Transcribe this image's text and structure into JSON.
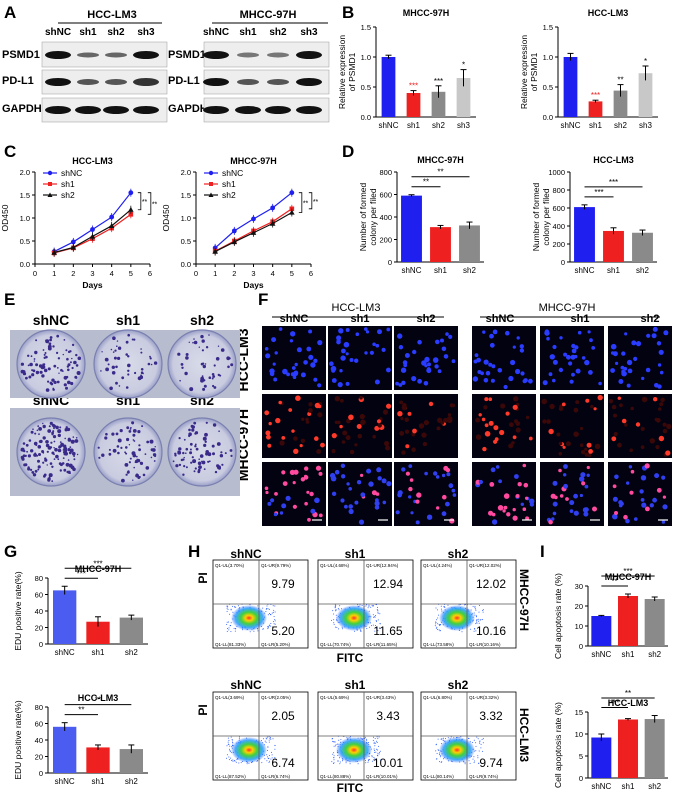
{
  "panels": {
    "A": "A",
    "B": "B",
    "C": "C",
    "D": "D",
    "E": "E",
    "F": "F",
    "G": "G",
    "H": "H",
    "I": "I"
  },
  "cell_lines": {
    "lm3": "HCC-LM3",
    "m97": "MHCC-97H"
  },
  "groups3": [
    "shNC",
    "sh1",
    "sh2"
  ],
  "groups4": [
    "shNC",
    "sh1",
    "sh2",
    "sh3"
  ],
  "proteins": [
    "PSMD1",
    "PD-L1",
    "GAPDH"
  ],
  "colors": {
    "shNC": "#1f1ff0",
    "sh1": "#ee2020",
    "sh2": "#8a8a8a",
    "sh3": "#c8c8c8",
    "edu_blue": "#4b5cf0"
  },
  "flow": {
    "x_label": "FITC",
    "y_label": "PI",
    "m97": [
      {
        "q2": "9.79",
        "q4": "5.20",
        "ul": "Q1-UL(3.70%)",
        "ur": "Q1-UR(9.79%)",
        "ll": "Q1-LL(81.33%)",
        "lr": "Q1-LR(5.20%)"
      },
      {
        "q2": "12.94",
        "q4": "11.65",
        "ul": "Q1-UL(4.68%)",
        "ur": "Q1-UR(12.94%)",
        "ll": "Q1-LL(70.74%)",
        "lr": "Q1-LR(11.65%)"
      },
      {
        "q2": "12.02",
        "q4": "10.16",
        "ul": "Q1-UL(4.24%)",
        "ur": "Q1-UR(12.02%)",
        "ll": "Q1-LL(73.58%)",
        "lr": "Q1-LR(10.16%)"
      }
    ],
    "lm3": [
      {
        "q2": "2.05",
        "q4": "6.74",
        "ul": "Q1-UL(3.69%)",
        "ur": "Q1-UR(2.05%)",
        "ll": "Q1-LL(87.52%)",
        "lr": "Q1-LR(6.74%)"
      },
      {
        "q2": "3.43",
        "q4": "10.01",
        "ul": "Q1-UL(5.69%)",
        "ur": "Q1-UR(3.43%)",
        "ll": "Q1-LL(80.88%)",
        "lr": "Q1-LR(10.01%)"
      },
      {
        "q2": "3.32",
        "q4": "9.74",
        "ul": "Q1-UL(6.80%)",
        "ur": "Q1-UR(3.32%)",
        "ll": "Q1-LL(80.14%)",
        "lr": "Q1-LR(9.74%)"
      }
    ]
  },
  "chart_data": [
    {
      "id": "B1",
      "type": "bar",
      "title": "MHCC-97H",
      "ylabel": "Relative expression of PSMD1",
      "categories": [
        "shNC",
        "sh1",
        "sh2",
        "sh3"
      ],
      "values": [
        1.0,
        0.4,
        0.42,
        0.65
      ],
      "errors": [
        0.03,
        0.04,
        0.1,
        0.14
      ],
      "sig": [
        "",
        "***",
        "***",
        "*"
      ],
      "ylim": [
        0,
        1.5
      ],
      "ticks": [
        "0.0",
        "0.5",
        "1.0",
        "1.5"
      ]
    },
    {
      "id": "B2",
      "type": "bar",
      "title": "HCC-LM3",
      "ylabel": "Relative expression of PSMD1",
      "categories": [
        "shNC",
        "sh1",
        "sh2",
        "sh3"
      ],
      "values": [
        1.0,
        0.26,
        0.44,
        0.73
      ],
      "errors": [
        0.06,
        0.02,
        0.1,
        0.12
      ],
      "sig": [
        "",
        "***",
        "**",
        "*"
      ],
      "ylim": [
        0,
        1.5
      ],
      "ticks": [
        "0.0",
        "0.5",
        "1.0",
        "1.5"
      ]
    },
    {
      "id": "C1",
      "type": "line",
      "title": "HCC-LM3",
      "xlabel": "Days",
      "ylabel": "OD450",
      "x": [
        1,
        2,
        3,
        4,
        5
      ],
      "xticks": [
        "0",
        "1",
        "2",
        "3",
        "4",
        "5",
        "6"
      ],
      "yticks": [
        "0.0",
        "0.5",
        "1.0",
        "1.5",
        "2.0"
      ],
      "ylim": [
        0,
        2
      ],
      "series": [
        {
          "name": "shNC",
          "values": [
            0.27,
            0.48,
            0.75,
            1.02,
            1.55
          ]
        },
        {
          "name": "sh1",
          "values": [
            0.24,
            0.35,
            0.55,
            0.78,
            1.08
          ]
        },
        {
          "name": "sh2",
          "values": [
            0.25,
            0.36,
            0.6,
            0.83,
            1.18
          ]
        }
      ],
      "sig": [
        "**",
        "**"
      ]
    },
    {
      "id": "C2",
      "type": "line",
      "title": "MHCC-97H",
      "xlabel": "Days",
      "ylabel": "OD450",
      "x": [
        1,
        2,
        3,
        4,
        5
      ],
      "xticks": [
        "0",
        "1",
        "2",
        "3",
        "4",
        "5",
        "6"
      ],
      "yticks": [
        "0.0",
        "0.5",
        "1.0",
        "1.5",
        "2.0"
      ],
      "ylim": [
        0,
        2
      ],
      "series": [
        {
          "name": "shNC",
          "values": [
            0.35,
            0.72,
            0.98,
            1.22,
            1.55
          ]
        },
        {
          "name": "sh1",
          "values": [
            0.28,
            0.5,
            0.72,
            0.92,
            1.2
          ]
        },
        {
          "name": "sh2",
          "values": [
            0.27,
            0.48,
            0.68,
            0.88,
            1.12
          ]
        }
      ],
      "sig": [
        "**",
        "**"
      ]
    },
    {
      "id": "D1",
      "type": "bar",
      "title": "MHCC-97H",
      "ylabel": "Number of formed colony per filed",
      "categories": [
        "shNC",
        "sh1",
        "sh2"
      ],
      "values": [
        590,
        310,
        325
      ],
      "errors": [
        8,
        15,
        30
      ],
      "sig_lines": [
        "**",
        "**"
      ],
      "ylim": [
        0,
        800
      ],
      "ticks": [
        "0",
        "200",
        "400",
        "600",
        "800"
      ]
    },
    {
      "id": "D2",
      "type": "bar",
      "title": "HCC-LM3",
      "ylabel": "Number of formed colony per filed",
      "categories": [
        "shNC",
        "sh1",
        "sh2"
      ],
      "values": [
        610,
        345,
        325
      ],
      "errors": [
        25,
        35,
        30
      ],
      "sig_lines": [
        "***",
        "***"
      ],
      "ylim": [
        0,
        1000
      ],
      "ticks": [
        "0",
        "200",
        "400",
        "600",
        "800",
        "1000"
      ]
    },
    {
      "id": "G1",
      "type": "bar",
      "title": "MHCC-97H",
      "ylabel": "EDU positive rate(%)",
      "categories": [
        "shNC",
        "sh1",
        "sh2"
      ],
      "values": [
        65,
        27,
        32
      ],
      "errors": [
        5,
        6,
        3
      ],
      "sig_lines": [
        "***",
        "***"
      ],
      "ylim": [
        0,
        80
      ],
      "ticks": [
        "0",
        "20",
        "40",
        "60",
        "80"
      ]
    },
    {
      "id": "G2",
      "type": "bar",
      "title": "HCC-LM3",
      "ylabel": "EDU positive rate(%)",
      "categories": [
        "shNC",
        "sh1",
        "sh2"
      ],
      "values": [
        56,
        31,
        29
      ],
      "errors": [
        5,
        3,
        5
      ],
      "sig_lines": [
        "**",
        "**"
      ],
      "ylim": [
        0,
        80
      ],
      "ticks": [
        "0",
        "20",
        "40",
        "60",
        "80"
      ]
    },
    {
      "id": "I1",
      "type": "bar",
      "title": "MHCC-97H",
      "ylabel": "Cell apoptosis rate (%)",
      "categories": [
        "shNC",
        "sh1",
        "sh2"
      ],
      "values": [
        15,
        25,
        23.5
      ],
      "errors": [
        0.3,
        1,
        1
      ],
      "sig_lines": [
        "**",
        "***"
      ],
      "ylim": [
        0,
        30
      ],
      "ticks": [
        "0",
        "10",
        "20",
        "30"
      ]
    },
    {
      "id": "I2",
      "type": "bar",
      "title": "HCC-LM3",
      "ylabel": "Cell apoptosis rate (%)",
      "categories": [
        "shNC",
        "sh1",
        "sh2"
      ],
      "values": [
        9.2,
        13.3,
        13.4
      ],
      "errors": [
        0.8,
        0.2,
        0.8
      ],
      "sig_lines": [
        "***",
        "**"
      ],
      "ylim": [
        0,
        15
      ],
      "ticks": [
        "0",
        "5",
        "10",
        "15"
      ]
    }
  ]
}
